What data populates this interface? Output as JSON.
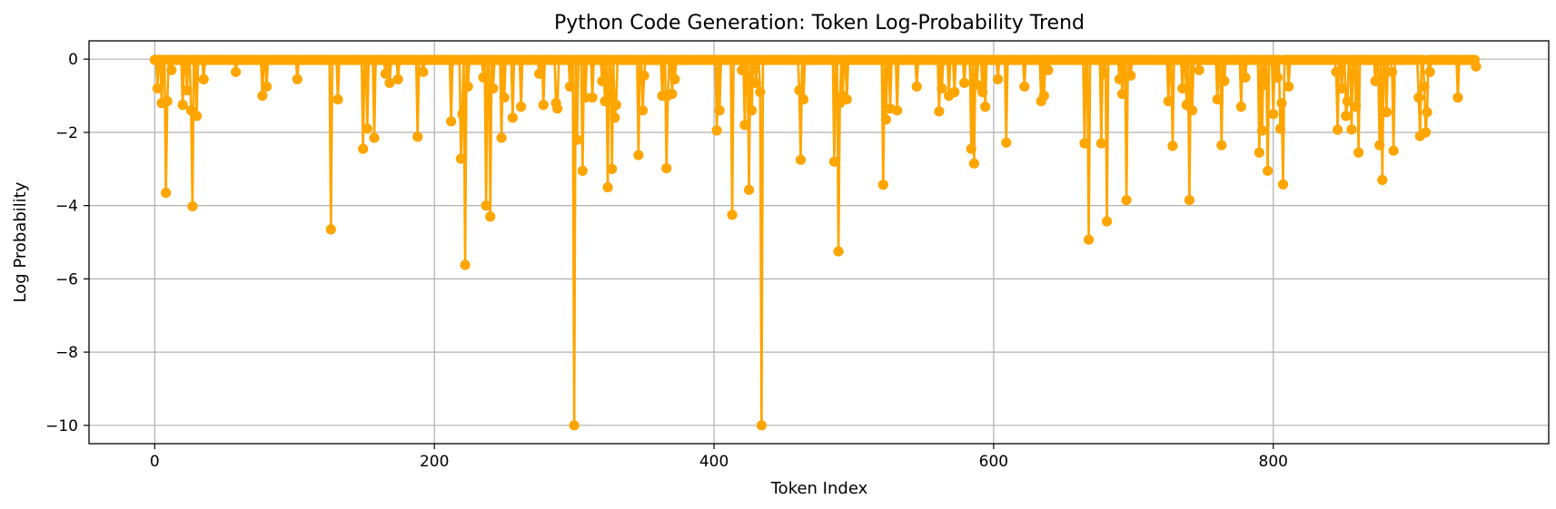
{
  "chart_data": {
    "type": "line",
    "title": "Python Code Generation: Token Log-Probability Trend",
    "xlabel": "Token Index",
    "ylabel": "Log Probability",
    "xlim": [
      -47,
      997
    ],
    "ylim": [
      -10.5,
      0.5
    ],
    "xticks": [
      0,
      200,
      400,
      600,
      800
    ],
    "yticks": [
      0,
      -2,
      -4,
      -6,
      -8,
      -10
    ],
    "grid": true,
    "series": [
      {
        "color": "#FFA500",
        "marker": "circle",
        "default_value": -0.02,
        "length": 946,
        "points": [
          [
            2,
            -0.8
          ],
          [
            5,
            -1.2
          ],
          [
            8,
            -3.65
          ],
          [
            9,
            -1.15
          ],
          [
            12,
            -0.3
          ],
          [
            20,
            -1.25
          ],
          [
            23,
            -0.85
          ],
          [
            26,
            -1.4
          ],
          [
            27,
            -4.02
          ],
          [
            30,
            -1.55
          ],
          [
            35,
            -0.55
          ],
          [
            58,
            -0.35
          ],
          [
            77,
            -1.0
          ],
          [
            80,
            -0.75
          ],
          [
            102,
            -0.55
          ],
          [
            126,
            -4.65
          ],
          [
            131,
            -1.1
          ],
          [
            149,
            -2.45
          ],
          [
            152,
            -1.9
          ],
          [
            157,
            -2.15
          ],
          [
            165,
            -0.4
          ],
          [
            168,
            -0.65
          ],
          [
            174,
            -0.55
          ],
          [
            188,
            -2.12
          ],
          [
            192,
            -0.35
          ],
          [
            212,
            -1.7
          ],
          [
            219,
            -2.72
          ],
          [
            220,
            -1.5
          ],
          [
            222,
            -5.62
          ],
          [
            224,
            -0.75
          ],
          [
            235,
            -0.5
          ],
          [
            237,
            -4.0
          ],
          [
            240,
            -4.3
          ],
          [
            242,
            -0.8
          ],
          [
            248,
            -2.15
          ],
          [
            250,
            -1.05
          ],
          [
            256,
            -1.6
          ],
          [
            262,
            -1.3
          ],
          [
            275,
            -0.4
          ],
          [
            278,
            -1.25
          ],
          [
            287,
            -1.2
          ],
          [
            288,
            -1.35
          ],
          [
            297,
            -0.75
          ],
          [
            300,
            -10.0
          ],
          [
            302,
            -2.2
          ],
          [
            306,
            -3.05
          ],
          [
            308,
            -1.05
          ],
          [
            313,
            -1.05
          ],
          [
            320,
            -0.6
          ],
          [
            322,
            -1.15
          ],
          [
            324,
            -3.5
          ],
          [
            327,
            -3.0
          ],
          [
            329,
            -1.6
          ],
          [
            330,
            -1.25
          ],
          [
            346,
            -2.62
          ],
          [
            349,
            -1.4
          ],
          [
            350,
            -0.45
          ],
          [
            363,
            -1.0
          ],
          [
            366,
            -2.98
          ],
          [
            367,
            -1.0
          ],
          [
            370,
            -0.95
          ],
          [
            372,
            -0.55
          ],
          [
            402,
            -1.95
          ],
          [
            404,
            -1.4
          ],
          [
            413,
            -4.25
          ],
          [
            420,
            -0.3
          ],
          [
            422,
            -1.8
          ],
          [
            425,
            -3.57
          ],
          [
            427,
            -1.4
          ],
          [
            430,
            -0.65
          ],
          [
            433,
            -0.9
          ],
          [
            434,
            -10.0
          ],
          [
            461,
            -0.85
          ],
          [
            462,
            -2.75
          ],
          [
            464,
            -1.1
          ],
          [
            486,
            -2.8
          ],
          [
            489,
            -5.25
          ],
          [
            490,
            -1.2
          ],
          [
            492,
            -1.0
          ],
          [
            495,
            -1.1
          ],
          [
            521,
            -3.43
          ],
          [
            523,
            -1.65
          ],
          [
            526,
            -1.35
          ],
          [
            531,
            -1.4
          ],
          [
            545,
            -0.75
          ],
          [
            561,
            -1.43
          ],
          [
            563,
            -0.8
          ],
          [
            568,
            -1.0
          ],
          [
            572,
            -0.9
          ],
          [
            579,
            -0.65
          ],
          [
            584,
            -2.45
          ],
          [
            586,
            -2.85
          ],
          [
            588,
            -0.7
          ],
          [
            592,
            -0.9
          ],
          [
            594,
            -1.3
          ],
          [
            603,
            -0.55
          ],
          [
            609,
            -2.28
          ],
          [
            622,
            -0.75
          ],
          [
            634,
            -1.15
          ],
          [
            636,
            -1.0
          ],
          [
            639,
            -0.3
          ],
          [
            665,
            -2.3
          ],
          [
            668,
            -4.93
          ],
          [
            677,
            -2.3
          ],
          [
            679,
            -0.4
          ],
          [
            681,
            -4.43
          ],
          [
            690,
            -0.55
          ],
          [
            692,
            -0.95
          ],
          [
            695,
            -3.85
          ],
          [
            698,
            -0.45
          ],
          [
            725,
            -1.15
          ],
          [
            728,
            -2.37
          ],
          [
            735,
            -0.8
          ],
          [
            738,
            -1.25
          ],
          [
            740,
            -3.85
          ],
          [
            742,
            -1.4
          ],
          [
            747,
            -0.3
          ],
          [
            760,
            -1.1
          ],
          [
            763,
            -2.35
          ],
          [
            765,
            -0.6
          ],
          [
            777,
            -1.3
          ],
          [
            780,
            -0.5
          ],
          [
            790,
            -2.55
          ],
          [
            792,
            -1.95
          ],
          [
            794,
            -0.7
          ],
          [
            796,
            -3.05
          ],
          [
            800,
            -1.5
          ],
          [
            803,
            -0.5
          ],
          [
            805,
            -1.9
          ],
          [
            806,
            -1.2
          ],
          [
            807,
            -3.42
          ],
          [
            811,
            -0.75
          ],
          [
            845,
            -0.35
          ],
          [
            846,
            -1.93
          ],
          [
            849,
            -0.8
          ],
          [
            852,
            -1.55
          ],
          [
            853,
            -1.15
          ],
          [
            856,
            -1.92
          ],
          [
            859,
            -1.3
          ],
          [
            861,
            -2.55
          ],
          [
            873,
            -0.6
          ],
          [
            876,
            -2.35
          ],
          [
            878,
            -3.3
          ],
          [
            881,
            -1.45
          ],
          [
            885,
            -0.35
          ],
          [
            886,
            -2.5
          ],
          [
            904,
            -1.05
          ],
          [
            905,
            -2.1
          ],
          [
            908,
            -0.75
          ],
          [
            909,
            -2.0
          ],
          [
            910,
            -1.45
          ],
          [
            912,
            -0.35
          ],
          [
            932,
            -1.05
          ],
          [
            945,
            -0.2
          ]
        ]
      }
    ]
  }
}
